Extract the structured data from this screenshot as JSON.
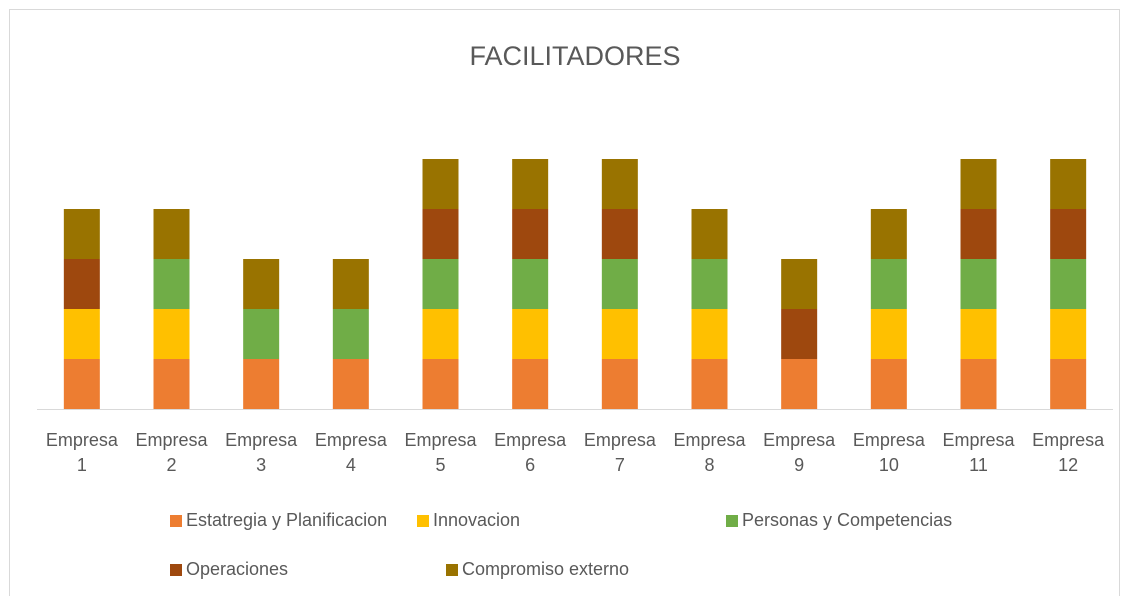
{
  "chart_data": {
    "type": "stacked_bar",
    "title": "FACILITADORES",
    "categories": [
      "Empresa 1",
      "Empresa 2",
      "Empresa 3",
      "Empresa 4",
      "Empresa 5",
      "Empresa 6",
      "Empresa 7",
      "Empresa 8",
      "Empresa 9",
      "Empresa 10",
      "Empresa 11",
      "Empresa 12"
    ],
    "series": [
      {
        "name": "Estatregia y Planificacion",
        "color": "#ed7d31",
        "values": [
          1,
          1,
          1,
          1,
          1,
          1,
          1,
          1,
          1,
          1,
          1,
          1
        ]
      },
      {
        "name": "Innovacion",
        "color": "#ffc000",
        "values": [
          1,
          1,
          0,
          0,
          1,
          1,
          1,
          1,
          0,
          1,
          1,
          1
        ]
      },
      {
        "name": "Personas y Competencias",
        "color": "#70ad47",
        "values": [
          0,
          1,
          1,
          1,
          1,
          1,
          1,
          1,
          0,
          1,
          1,
          1
        ]
      },
      {
        "name": "Operaciones",
        "color": "#9e480e",
        "values": [
          1,
          0,
          0,
          0,
          1,
          1,
          1,
          0,
          1,
          0,
          1,
          1
        ]
      },
      {
        "name": "Compromiso externo",
        "color": "#997300",
        "values": [
          1,
          1,
          1,
          1,
          1,
          1,
          1,
          1,
          1,
          1,
          1,
          1
        ]
      }
    ]
  }
}
